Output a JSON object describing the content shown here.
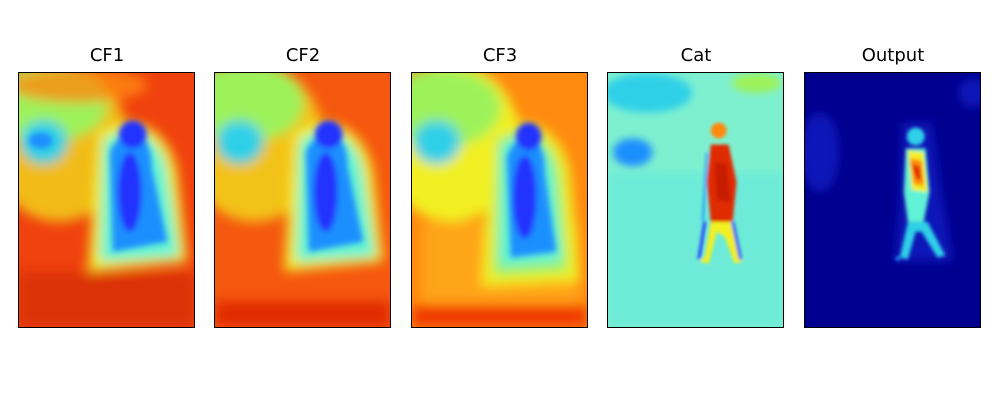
{
  "panels": [
    {
      "title": "CF1"
    },
    {
      "title": "CF2"
    },
    {
      "title": "CF3"
    },
    {
      "title": "Cat"
    },
    {
      "title": "Output"
    }
  ],
  "colormap": "jet",
  "colors": {
    "dark_red": "#c81e00",
    "red": "#f53a0d",
    "orange": "#ff8a10",
    "yellow": "#f2f020",
    "light_green": "#9df25a",
    "cyan": "#5ef2d6",
    "teal": "#2fd0e8",
    "light_blue": "#1f8fff",
    "blue": "#2030ff",
    "navy": "#0c14b8",
    "dark_navy": "#00008f"
  }
}
